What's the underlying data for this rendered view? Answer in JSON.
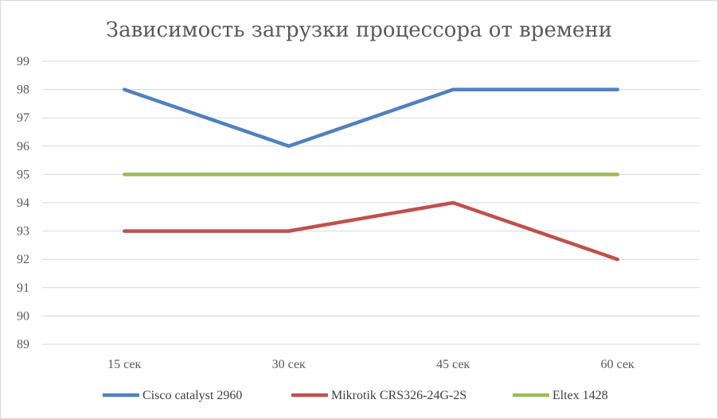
{
  "chart_data": {
    "type": "line",
    "title": "Зависимость загрузки процессора от времени",
    "categories": [
      "15 сек",
      "30 сек",
      "45 сек",
      "60 сек"
    ],
    "series": [
      {
        "name": "Cisco catalyst 2960",
        "values": [
          98,
          96,
          98,
          98
        ],
        "color": "#4f81bd"
      },
      {
        "name": "Mikrotik CRS326-24G-2S",
        "values": [
          93,
          93,
          94,
          92
        ],
        "color": "#c0504d"
      },
      {
        "name": "Eltex 1428",
        "values": [
          95,
          95,
          95,
          95
        ],
        "color": "#9bbb59"
      }
    ],
    "ylim": [
      89,
      99
    ],
    "yticks": [
      "89",
      "90",
      "91",
      "92",
      "93",
      "94",
      "95",
      "96",
      "97",
      "98",
      "99"
    ],
    "grid": true,
    "legend_position": "bottom",
    "colors": {
      "grid": "#d9d9d9",
      "text": "#595959",
      "border": "#d9d9d9"
    }
  }
}
